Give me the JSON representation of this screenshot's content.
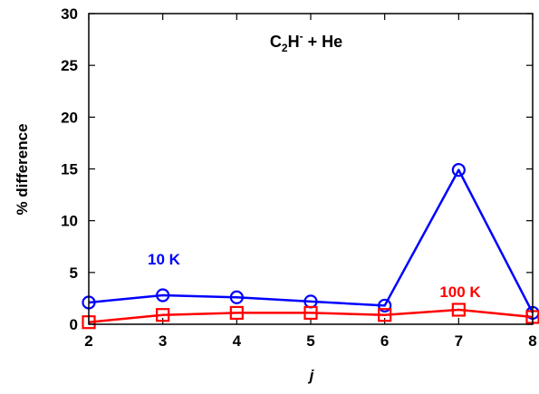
{
  "chart_data": {
    "type": "line",
    "title": {
      "base1": "C",
      "sub1": "2",
      "base2": "H",
      "sup2": "-",
      "rest": " + He"
    },
    "xlabel": "j",
    "ylabel": "% difference",
    "xlim": [
      2,
      8
    ],
    "ylim": [
      0,
      30
    ],
    "x_ticks": [
      2,
      3,
      4,
      5,
      6,
      7,
      8
    ],
    "y_ticks": [
      0,
      5,
      10,
      15,
      20,
      25,
      30
    ],
    "x": [
      2,
      3,
      4,
      5,
      6,
      7,
      8
    ],
    "grid": false,
    "series": [
      {
        "name": "10 K",
        "color": "#0000ff",
        "marker": "circle",
        "values": [
          2.1,
          2.8,
          2.6,
          2.2,
          1.8,
          14.9,
          1.1
        ]
      },
      {
        "name": "100 K",
        "color": "#ff0000",
        "marker": "square",
        "values": [
          0.2,
          0.9,
          1.1,
          1.1,
          0.9,
          1.4,
          0.7
        ]
      }
    ]
  }
}
